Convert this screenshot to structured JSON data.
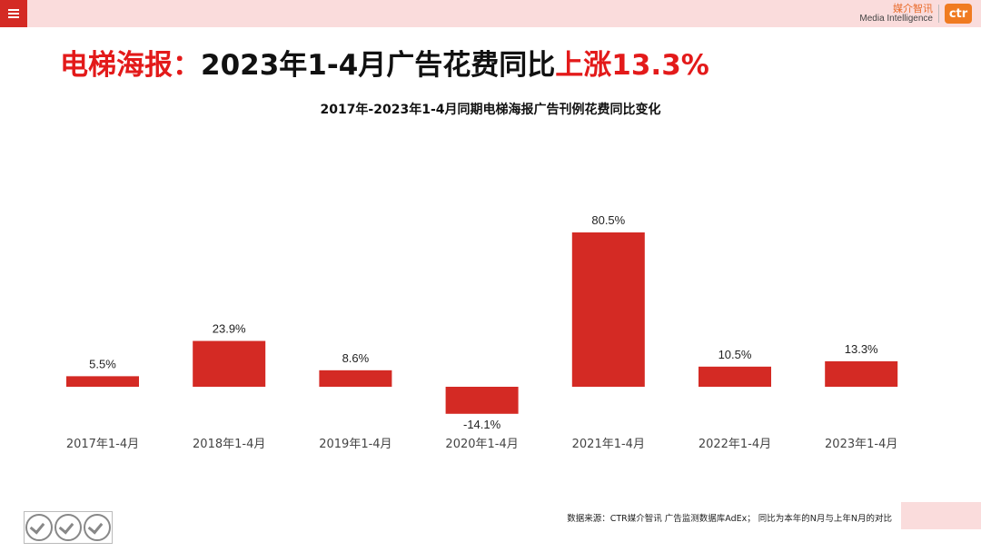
{
  "header": {
    "brand_cn": "媒介智讯",
    "brand_en": "Media Intelligence",
    "logo_text": "ctr"
  },
  "headline": {
    "part1": "电梯海报：",
    "part2": "2023年1-4月广告花费同比",
    "part3": "上涨13.3%"
  },
  "chart_data": {
    "type": "bar",
    "title": "2017年-2023年1-4月同期电梯海报广告刊例花费同比变化",
    "categories": [
      "2017年1-4月",
      "2018年1-4月",
      "2019年1-4月",
      "2020年1-4月",
      "2021年1-4月",
      "2022年1-4月",
      "2023年1-4月"
    ],
    "values": [
      5.5,
      23.9,
      8.6,
      -14.1,
      80.5,
      10.5,
      13.3
    ],
    "labels": [
      "5.5%",
      "23.9%",
      "8.6%",
      "-14.1%",
      "80.5%",
      "10.5%",
      "13.3%"
    ],
    "unit": "%",
    "bar_color": "#d42a24",
    "grid": false,
    "legend": "none"
  },
  "footer": {
    "source": "数据来源：CTR媒介智讯 广告监测数据库AdEx；  同比为本年的N月与上年N月的对比"
  },
  "colors": {
    "accent": "#d42a24",
    "highlight_text": "#e31a1a",
    "band": "#fadcdc"
  }
}
